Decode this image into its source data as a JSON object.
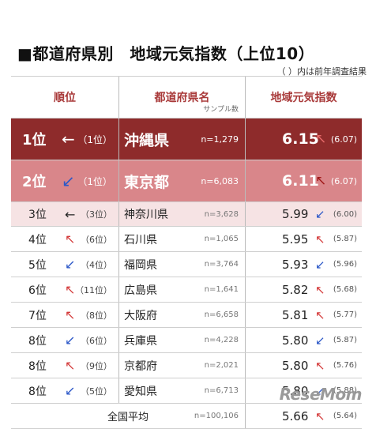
{
  "title": "■都道府県別　地域元気指数（上位10）",
  "note": "（ ）内は前年調査結果",
  "headers": {
    "rank": "順位",
    "prefecture": "都道府県名",
    "sample": "サンプル数",
    "index": "地域元気指数"
  },
  "rows": [
    {
      "rank": "1位",
      "rank_arrow": "←",
      "rank_trend": "same",
      "prev_rank": "（1位）",
      "pref": "沖縄県",
      "n": "n=1,279",
      "value": "6.15",
      "value_arrow": "↖",
      "value_trend": "up",
      "prev_value": "(6.07)"
    },
    {
      "rank": "2位",
      "rank_arrow": "↙",
      "rank_trend": "down",
      "prev_rank": "（1位）",
      "pref": "東京都",
      "n": "n=6,083",
      "value": "6.11",
      "value_arrow": "↖",
      "value_trend": "up",
      "prev_value": "(6.07)"
    },
    {
      "rank": "3位",
      "rank_arrow": "←",
      "rank_trend": "same",
      "prev_rank": "（3位）",
      "pref": "神奈川県",
      "n": "n=3,628",
      "value": "5.99",
      "value_arrow": "↙",
      "value_trend": "down",
      "prev_value": "(6.00)"
    },
    {
      "rank": "4位",
      "rank_arrow": "↖",
      "rank_trend": "up",
      "prev_rank": "（6位）",
      "pref": "石川県",
      "n": "n=1,065",
      "value": "5.95",
      "value_arrow": "↖",
      "value_trend": "up",
      "prev_value": "(5.87)"
    },
    {
      "rank": "5位",
      "rank_arrow": "↙",
      "rank_trend": "down",
      "prev_rank": "（4位）",
      "pref": "福岡県",
      "n": "n=3,764",
      "value": "5.93",
      "value_arrow": "↙",
      "value_trend": "down",
      "prev_value": "(5.96)"
    },
    {
      "rank": "6位",
      "rank_arrow": "↖",
      "rank_trend": "up",
      "prev_rank": "（11位）",
      "pref": "広島県",
      "n": "n=1,641",
      "value": "5.82",
      "value_arrow": "↖",
      "value_trend": "up",
      "prev_value": "(5.68)"
    },
    {
      "rank": "7位",
      "rank_arrow": "↖",
      "rank_trend": "up",
      "prev_rank": "（8位）",
      "pref": "大阪府",
      "n": "n=6,658",
      "value": "5.81",
      "value_arrow": "↖",
      "value_trend": "up",
      "prev_value": "(5.77)"
    },
    {
      "rank": "8位",
      "rank_arrow": "↙",
      "rank_trend": "down",
      "prev_rank": "（6位）",
      "pref": "兵庫県",
      "n": "n=4,228",
      "value": "5.80",
      "value_arrow": "↙",
      "value_trend": "down",
      "prev_value": "(5.87)"
    },
    {
      "rank": "8位",
      "rank_arrow": "↖",
      "rank_trend": "up",
      "prev_rank": "（9位）",
      "pref": "京都府",
      "n": "n=2,021",
      "value": "5.80",
      "value_arrow": "↖",
      "value_trend": "up",
      "prev_value": "(5.76)"
    },
    {
      "rank": "8位",
      "rank_arrow": "↙",
      "rank_trend": "down",
      "prev_rank": "（5位）",
      "pref": "愛知県",
      "n": "n=6,713",
      "value": "5.80",
      "value_arrow": "↙",
      "value_trend": "down",
      "prev_value": "(5.88)"
    }
  ],
  "footer": {
    "label": "全国平均",
    "n": "n=100,106",
    "value": "5.66",
    "value_arrow": "↖",
    "value_trend": "up",
    "prev_value": "(5.64)"
  },
  "logo": "ReseMom",
  "colors": {
    "rank1_bg": "#8e2b2b",
    "rank2_bg": "#d9868a",
    "rank3_bg": "#f6e3e4",
    "header_text": "#a93a3a",
    "up_arrow": "#d43a3a",
    "down_arrow": "#2c58c8"
  },
  "icons": {
    "same": "left-arrow-icon",
    "up": "up-left-arrow-icon",
    "down": "down-left-arrow-icon"
  }
}
